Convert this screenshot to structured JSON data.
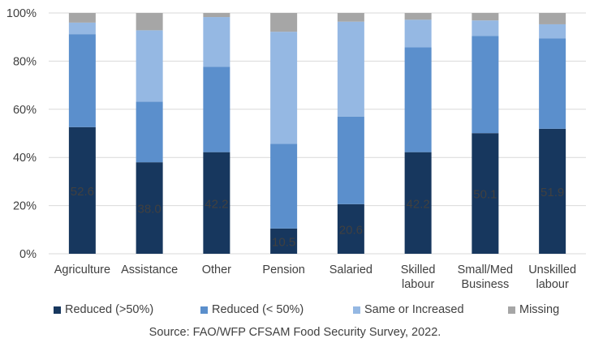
{
  "chart_data": {
    "type": "bar",
    "stacked": true,
    "categories": [
      "Agriculture",
      "Assistance",
      "Other",
      "Pension",
      "Salaried",
      "Skilled labour",
      "Small/Med Business",
      "Unskilled labour"
    ],
    "category_lines": [
      [
        "Agriculture"
      ],
      [
        "Assistance"
      ],
      [
        "Other"
      ],
      [
        "Pension"
      ],
      [
        "Salaried"
      ],
      [
        "Skilled",
        "labour"
      ],
      [
        "Small/Med",
        "Business"
      ],
      [
        "Unskilled",
        "labour"
      ]
    ],
    "series": [
      {
        "name": "Reduced (>50%)",
        "color": "#17375e",
        "values": [
          52.6,
          38.0,
          42.2,
          10.5,
          20.6,
          42.2,
          50.1,
          51.9
        ]
      },
      {
        "name": "Reduced (< 50%)",
        "color": "#5b8fcc",
        "values": [
          38.6,
          25.2,
          35.5,
          35.2,
          36.4,
          43.5,
          40.3,
          37.5
        ]
      },
      {
        "name": "Same or Increased",
        "color": "#95b8e3",
        "values": [
          4.8,
          29.6,
          20.6,
          46.5,
          39.4,
          11.5,
          6.5,
          5.9
        ]
      },
      {
        "name": "Missing",
        "color": "#a6a6a6",
        "values": [
          4.0,
          7.2,
          1.7,
          7.8,
          3.6,
          2.8,
          3.1,
          4.7
        ]
      }
    ],
    "data_labels": [
      "52.6",
      "38.0",
      "42.2",
      "10.5",
      "20.6",
      "42.2",
      "50.1",
      "51.9"
    ],
    "y_ticks": [
      "0%",
      "20%",
      "40%",
      "60%",
      "80%",
      "100%"
    ],
    "ylim": [
      0,
      100
    ],
    "grid": true,
    "legend_position": "bottom",
    "source": "Source: FAO/WFP CFSAM Food Security Survey, 2022."
  }
}
